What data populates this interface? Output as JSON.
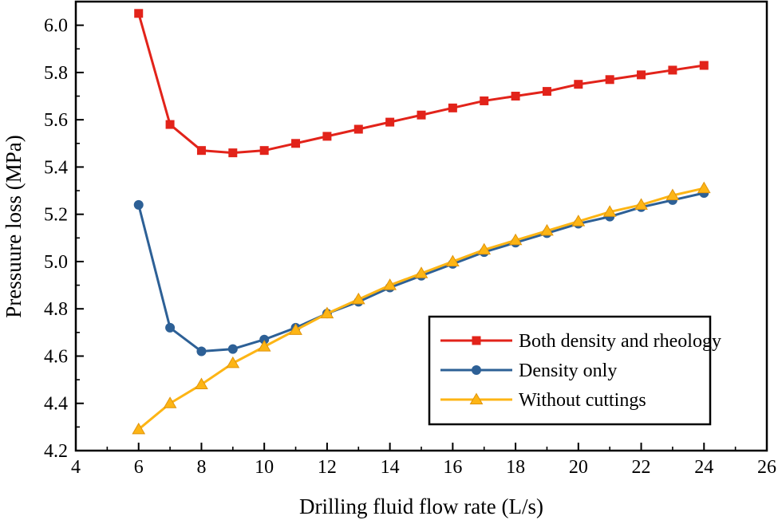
{
  "chart_data": {
    "type": "line",
    "title": "",
    "xlabel": "Drilling fluid flow rate (L/s)",
    "ylabel": "Pressuure loss (MPa)",
    "x": [
      6,
      7,
      8,
      9,
      10,
      11,
      12,
      13,
      14,
      15,
      16,
      17,
      18,
      19,
      20,
      21,
      22,
      23,
      24
    ],
    "series": [
      {
        "name": "Both density and rheology",
        "marker": "square",
        "color": "#e2231a",
        "values": [
          6.05,
          5.58,
          5.47,
          5.46,
          5.47,
          5.5,
          5.53,
          5.56,
          5.59,
          5.62,
          5.65,
          5.68,
          5.7,
          5.72,
          5.75,
          5.77,
          5.79,
          5.81,
          5.83
        ]
      },
      {
        "name": "Density only",
        "marker": "circle",
        "color": "#2d6096",
        "values": [
          5.24,
          4.72,
          4.62,
          4.63,
          4.67,
          4.72,
          4.78,
          4.83,
          4.89,
          4.94,
          4.99,
          5.04,
          5.08,
          5.12,
          5.16,
          5.19,
          5.23,
          5.26,
          5.29
        ]
      },
      {
        "name": "Without cuttings",
        "marker": "triangle",
        "color": "#fdb515",
        "marker_edge": "#e0940b",
        "values": [
          4.29,
          4.4,
          4.48,
          4.57,
          4.64,
          4.71,
          4.78,
          4.84,
          4.9,
          4.95,
          5.0,
          5.05,
          5.09,
          5.13,
          5.17,
          5.21,
          5.24,
          5.28,
          5.31
        ]
      }
    ],
    "xlim": [
      4,
      26
    ],
    "ylim": [
      4.2,
      6.1
    ],
    "xticks": [
      4,
      6,
      8,
      10,
      12,
      14,
      16,
      18,
      20,
      22,
      24,
      26
    ],
    "yticks": [
      4.2,
      4.4,
      4.6,
      4.8,
      5.0,
      5.2,
      5.4,
      5.6,
      5.8,
      6.0
    ],
    "grid": false,
    "legend_position": "inset lower right",
    "frame_color": "#000000",
    "background_color": "#ffffff"
  }
}
